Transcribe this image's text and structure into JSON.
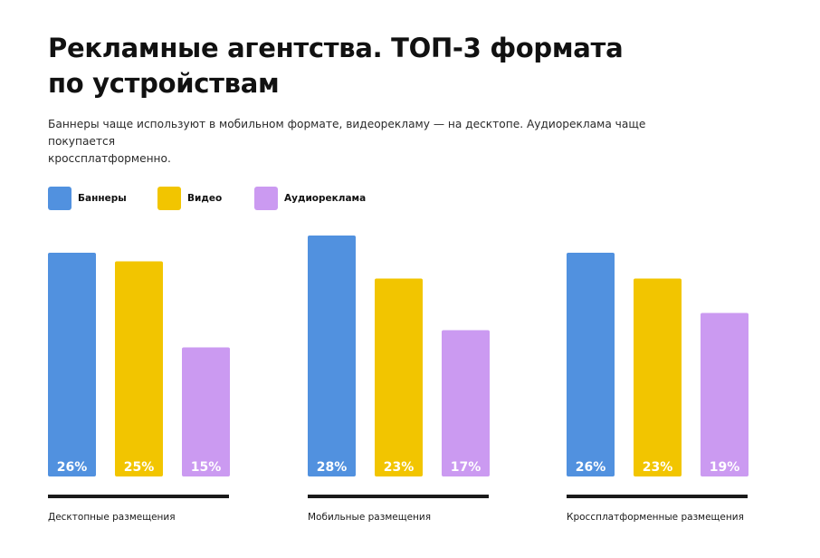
{
  "header": {
    "title_line1": "Рекламные агентства. ТОП-3 формата",
    "title_line2": "по устройствам",
    "subtitle_line1": "Баннеры чаще используют в мобильном формате, видеорекламу — на десктопе. Аудиореклама чаще покупается",
    "subtitle_line2": "кроссплатформенно."
  },
  "colors": {
    "banners": "#5191df",
    "video": "#f2c500",
    "audio": "#cb9af1",
    "axis": "#1a1a1a"
  },
  "chart_data": {
    "type": "bar",
    "title": "Рекламные агентства. ТОП-3 формата по устройствам",
    "categories": [
      "Десктопные размещения",
      "Мобильные размещения",
      "Кроссплатформенные размещения"
    ],
    "series": [
      {
        "name": "Баннеры",
        "values": [
          26,
          28,
          26
        ],
        "labels": [
          "26%",
          "28%",
          "26%"
        ]
      },
      {
        "name": "Видео",
        "values": [
          25,
          23,
          23
        ],
        "labels": [
          "25%",
          "23%",
          "23%"
        ]
      },
      {
        "name": "Аудиореклама",
        "values": [
          15,
          17,
          19
        ],
        "labels": [
          "15%",
          "17%",
          "19%"
        ]
      }
    ],
    "unit": "%",
    "xlabel": "",
    "ylabel": "",
    "ylim": [
      0,
      28
    ],
    "grid": false,
    "legend": "top-left"
  }
}
